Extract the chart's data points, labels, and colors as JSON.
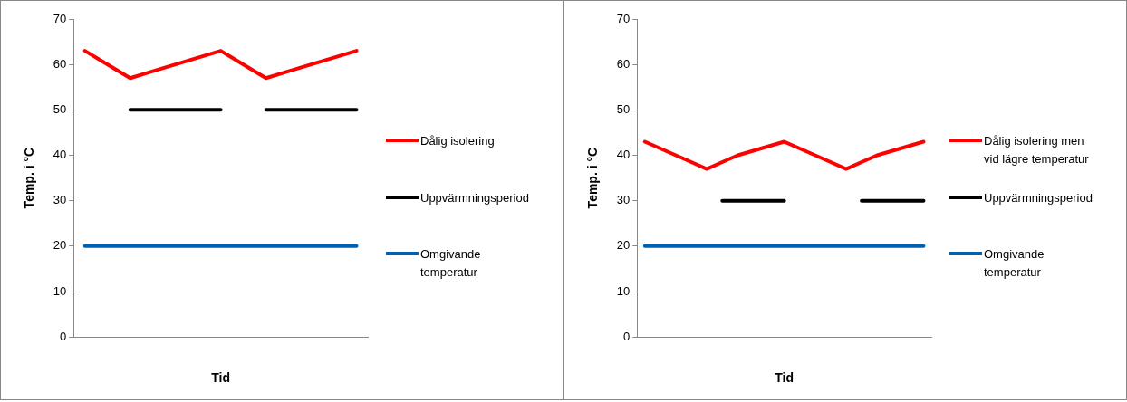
{
  "chart_data": [
    {
      "type": "line",
      "ylabel": "Temp. i °C",
      "xlabel": "Tid",
      "categories": [
        null,
        null,
        null,
        null,
        null,
        null,
        null,
        null,
        null,
        null,
        null,
        null,
        null
      ],
      "series": [
        {
          "name": "Dålig isolering",
          "color": "#ff0000",
          "values": [
            63,
            60,
            57,
            58.5,
            60,
            61.5,
            63,
            60,
            57,
            58.5,
            60,
            61.5,
            63
          ]
        },
        {
          "name": "Uppvärmningsperiod",
          "color": "#000000",
          "values": [
            null,
            null,
            50,
            50,
            50,
            50,
            50,
            null,
            50,
            50,
            50,
            50,
            50
          ]
        },
        {
          "name": "Omgivande temperatur",
          "color": "#0061b0",
          "values": [
            20,
            20,
            20,
            20,
            20,
            20,
            20,
            20,
            20,
            20,
            20,
            20,
            20
          ]
        }
      ],
      "ylim": [
        0,
        70
      ],
      "yticks": [
        0,
        10,
        20,
        30,
        40,
        50,
        60,
        70
      ],
      "grid": false,
      "legend": "right",
      "marker": "none",
      "line_style": "solid",
      "tick_labels": "y"
    },
    {
      "type": "line",
      "ylabel": "Temp. i °C",
      "xlabel": "Tid",
      "categories": [
        null,
        null,
        null,
        null,
        null,
        null,
        null,
        null,
        null,
        null,
        null,
        null,
        null,
        null,
        null,
        null,
        null,
        null,
        null
      ],
      "series": [
        {
          "name": "Dålig isolering men vid lägre temperatur",
          "color": "#ff0000",
          "values": [
            43,
            41.5,
            40,
            38.5,
            37,
            38.5,
            40,
            41,
            42,
            43,
            41.5,
            40,
            38.5,
            37,
            38.5,
            40,
            41,
            42,
            43
          ]
        },
        {
          "name": "Uppvärmningsperiod",
          "color": "#000000",
          "values": [
            null,
            null,
            null,
            null,
            null,
            30,
            30,
            30,
            30,
            30,
            null,
            null,
            null,
            null,
            30,
            30,
            30,
            30,
            30
          ]
        },
        {
          "name": "Omgivande temperatur",
          "color": "#0061b0",
          "values": [
            20,
            20,
            20,
            20,
            20,
            20,
            20,
            20,
            20,
            20,
            20,
            20,
            20,
            20,
            20,
            20,
            20,
            20,
            20
          ]
        }
      ],
      "ylim": [
        0,
        70
      ],
      "yticks": [
        0,
        10,
        20,
        30,
        40,
        50,
        60,
        70
      ],
      "grid": false,
      "legend": "right",
      "marker": "none",
      "line_style": "solid",
      "tick_labels": "y"
    }
  ]
}
